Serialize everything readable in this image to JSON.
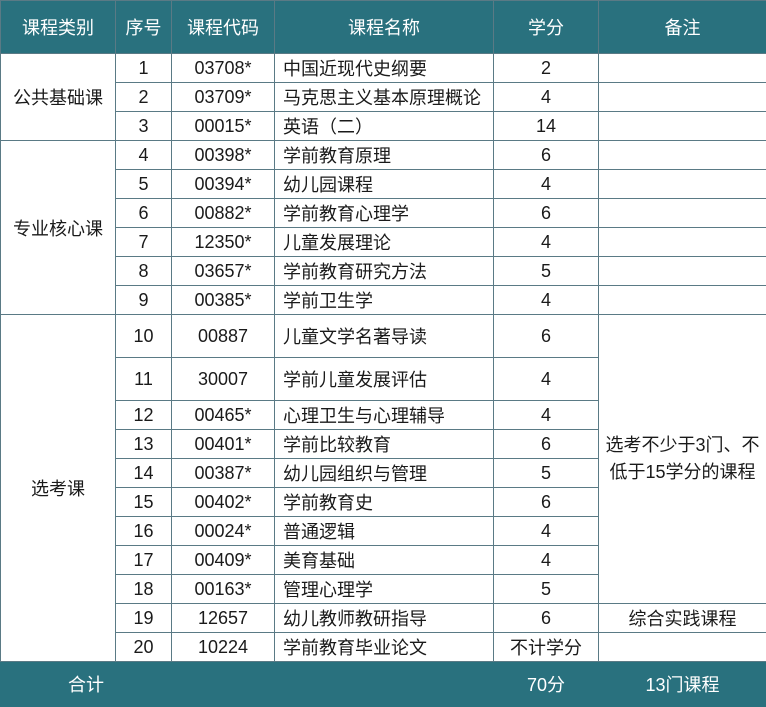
{
  "colors": {
    "header_bg": "#29717e",
    "header_text": "#ffffff",
    "border": "#5a7a85",
    "body_text": "#1a1a1a",
    "body_bg": "#ffffff"
  },
  "headers": {
    "category": "课程类别",
    "index": "序号",
    "code": "课程代码",
    "name": "课程名称",
    "credit": "学分",
    "note": "备注"
  },
  "groups": [
    {
      "category": "公共基础课",
      "rows": [
        {
          "idx": "1",
          "code": "03708*",
          "name": "中国近现代史纲要",
          "credit": "2",
          "note": ""
        },
        {
          "idx": "2",
          "code": "03709*",
          "name": "马克思主义基本原理概论",
          "credit": "4",
          "note": ""
        },
        {
          "idx": "3",
          "code": "00015*",
          "name": "英语（二）",
          "credit": "14",
          "note": ""
        }
      ]
    },
    {
      "category": "专业核心课",
      "rows": [
        {
          "idx": "4",
          "code": "00398*",
          "name": "学前教育原理",
          "credit": "6",
          "note": ""
        },
        {
          "idx": "5",
          "code": "00394*",
          "name": "幼儿园课程",
          "credit": "4",
          "note": ""
        },
        {
          "idx": "6",
          "code": "00882*",
          "name": "学前教育心理学",
          "credit": "6",
          "note": ""
        },
        {
          "idx": "7",
          "code": "12350*",
          "name": "儿童发展理论",
          "credit": "4",
          "note": ""
        },
        {
          "idx": "8",
          "code": "03657*",
          "name": "学前教育研究方法",
          "credit": "5",
          "note": ""
        },
        {
          "idx": "9",
          "code": "00385*",
          "name": "学前卫生学",
          "credit": "4",
          "note": ""
        }
      ]
    },
    {
      "category": "选考课",
      "note": "选考不少于3门、不低于15学分的课程",
      "rows": [
        {
          "idx": "10",
          "code": "00887",
          "name": "儿童文学名著导读",
          "credit": "6",
          "tall": true
        },
        {
          "idx": "11",
          "code": "30007",
          "name": "学前儿童发展评估",
          "credit": "4",
          "tall": true
        },
        {
          "idx": "12",
          "code": "00465*",
          "name": "心理卫生与心理辅导",
          "credit": "4"
        },
        {
          "idx": "13",
          "code": "00401*",
          "name": "学前比较教育",
          "credit": "6"
        },
        {
          "idx": "14",
          "code": "00387*",
          "name": "幼儿园组织与管理",
          "credit": "5"
        },
        {
          "idx": "15",
          "code": "00402*",
          "name": "学前教育史",
          "credit": "6"
        },
        {
          "idx": "16",
          "code": "00024*",
          "name": "普通逻辑",
          "credit": "4"
        },
        {
          "idx": "17",
          "code": "00409*",
          "name": "美育基础",
          "credit": "4"
        },
        {
          "idx": "18",
          "code": "00163*",
          "name": "管理心理学",
          "credit": "5"
        }
      ]
    }
  ],
  "standalone_rows": [
    {
      "idx": "19",
      "code": "12657",
      "name": "幼儿教师教研指导",
      "credit": "6",
      "note": "综合实践课程"
    },
    {
      "idx": "20",
      "code": "10224",
      "name": "学前教育毕业论文",
      "credit": "不计学分",
      "note": ""
    }
  ],
  "footer": {
    "label": "合计",
    "credit": "70分",
    "count": "13门课程"
  }
}
